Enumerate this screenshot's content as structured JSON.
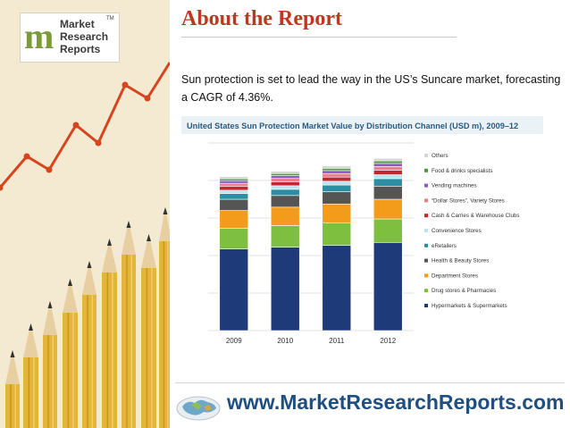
{
  "logo": {
    "line1": "Market",
    "line2": "Research",
    "line3": "Reports",
    "tm": "TM",
    "colors": [
      "#7a9b3b",
      "#b24d2a"
    ]
  },
  "header": {
    "title": "About the Report",
    "title_color": "#c0361f"
  },
  "lede": "Sun protection is set to lead the way in the US’s Suncare market, forecasting a CAGR of 4.36%.",
  "footer": {
    "url": "www.MarketResearchReports.com",
    "url_color": "#1e4f80",
    "icon": "globe-map-icon"
  },
  "decor": {
    "left_panel": "pencils-with-rising-line-graph",
    "pencil_color": "#e3b53a",
    "line_color": "#d6451f"
  },
  "chart_data": {
    "type": "bar",
    "stacked": true,
    "title": "United States Sun Protection Market Value by Distribution Channel (USD m), 2009–12",
    "xlabel": "",
    "ylabel": "",
    "ylim": [
      0,
      1000
    ],
    "grid": true,
    "legend_position": "right",
    "categories": [
      "2009",
      "2010",
      "2011",
      "2012"
    ],
    "series": [
      {
        "name": "Hypermarkets & Supermarkets",
        "color": "#1f3a78",
        "values": [
          435,
          445,
          455,
          470
        ]
      },
      {
        "name": "Drug stores & Pharmacies",
        "color": "#7fbf3f",
        "values": [
          110,
          115,
          120,
          125
        ]
      },
      {
        "name": "Department Stores",
        "color": "#f39c1c",
        "values": [
          95,
          98,
          100,
          105
        ]
      },
      {
        "name": "Health & Beauty Stores",
        "color": "#555555",
        "values": [
          60,
          62,
          65,
          70
        ]
      },
      {
        "name": "eRetailers",
        "color": "#2b8fa3",
        "values": [
          30,
          33,
          36,
          40
        ]
      },
      {
        "name": "Convenience Stores",
        "color": "#bfe3ee",
        "values": [
          18,
          19,
          20,
          21
        ]
      },
      {
        "name": "Cash & Carries & Warehouse Clubs",
        "color": "#c0282d",
        "values": [
          20,
          21,
          22,
          23
        ]
      },
      {
        "name": "“Dollar Stores”, Variety Stores",
        "color": "#ef7e8c",
        "values": [
          17,
          18,
          19,
          20
        ]
      },
      {
        "name": "Vending machines",
        "color": "#8a5bc4",
        "values": [
          14,
          15,
          16,
          17
        ]
      },
      {
        "name": "Food & drinks specialists",
        "color": "#4f9a3a",
        "values": [
          10,
          11,
          12,
          13
        ]
      },
      {
        "name": "Others",
        "color": "#d6d6d6",
        "values": [
          12,
          12,
          13,
          14
        ]
      }
    ]
  }
}
